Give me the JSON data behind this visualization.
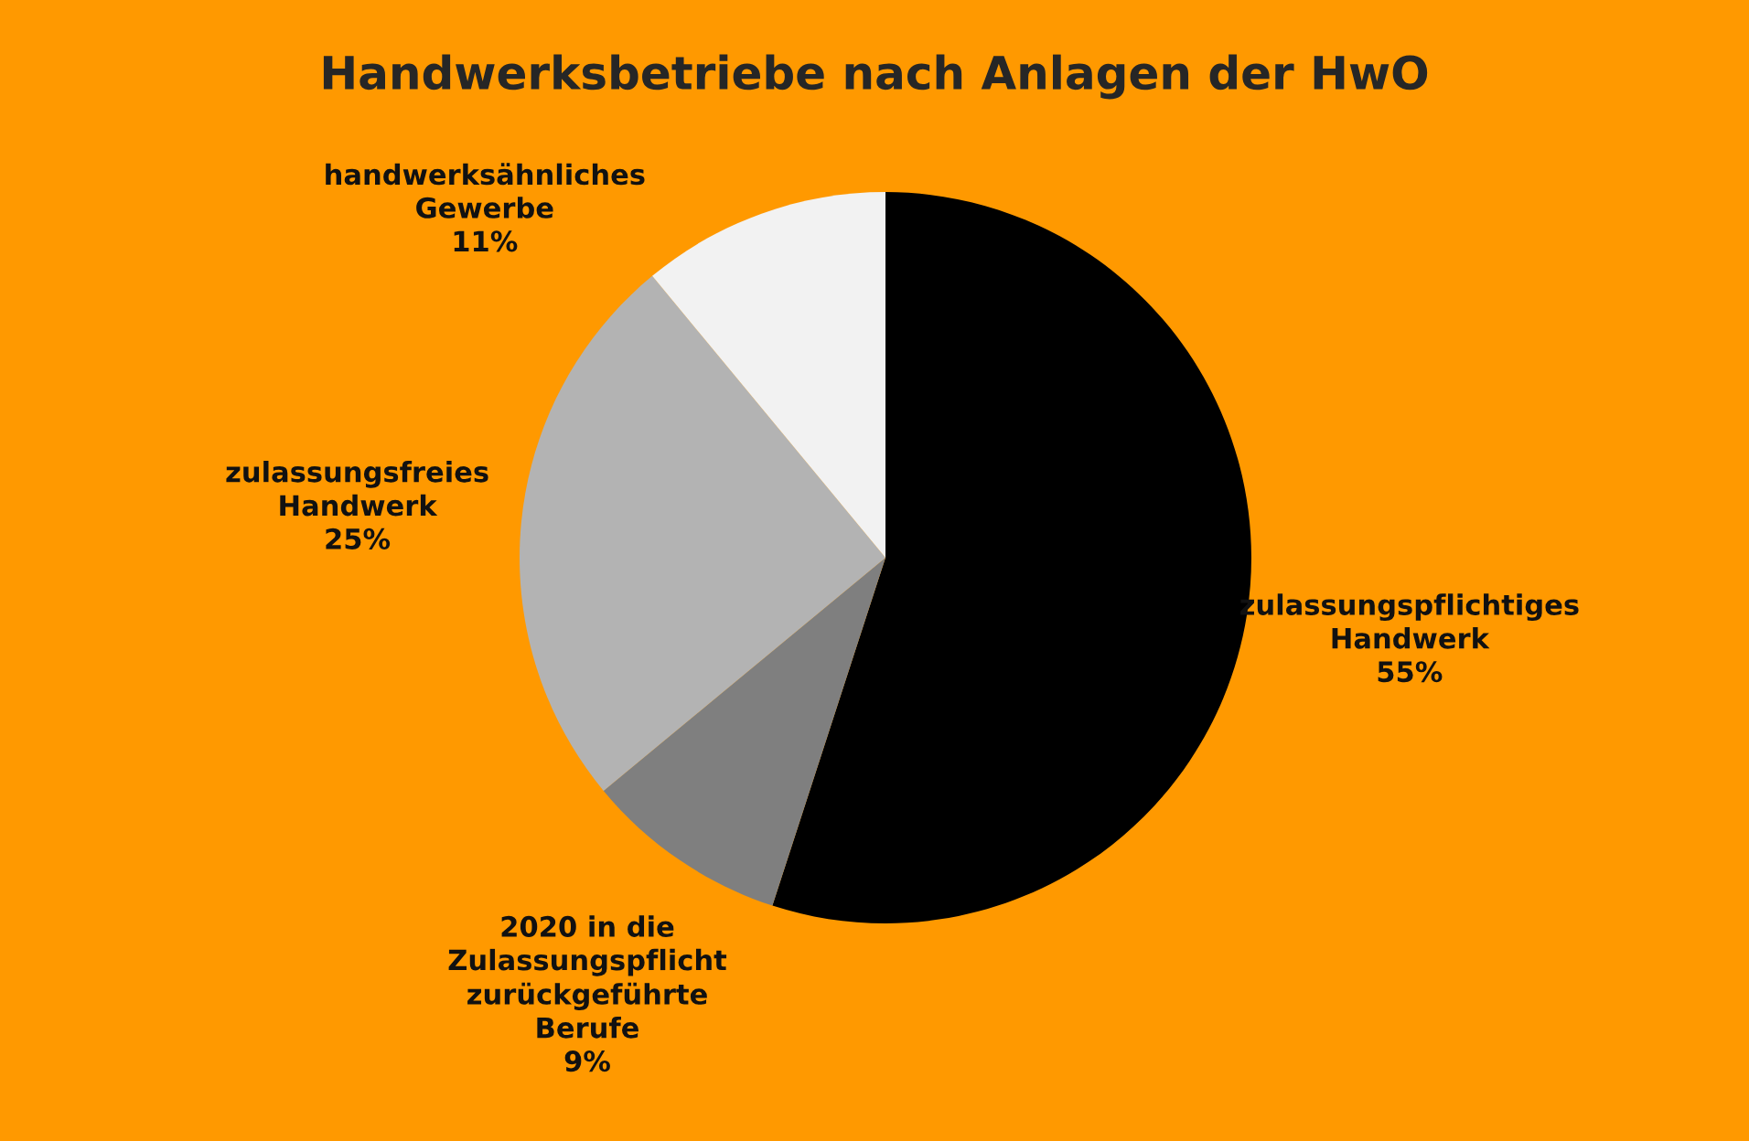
{
  "chart_data": {
    "type": "pie",
    "title": "Handwerksbetriebe nach Anlagen der HwO",
    "categories": [
      "zulassungspflichtiges\nHandwerk",
      "2020 in die\nZulassungspflicht\nzurückgeführte\nBerufe",
      "zulassungsfreies\nHandwerk",
      "handwerksähnliches\nGewerbe"
    ],
    "values": [
      55,
      9,
      25,
      11
    ],
    "colors": [
      "#000000",
      "#7f7f7f",
      "#b3b3b3",
      "#f2f2f2"
    ],
    "value_labels": [
      "55%",
      "9%",
      "25%",
      "11%"
    ],
    "legend": false
  }
}
